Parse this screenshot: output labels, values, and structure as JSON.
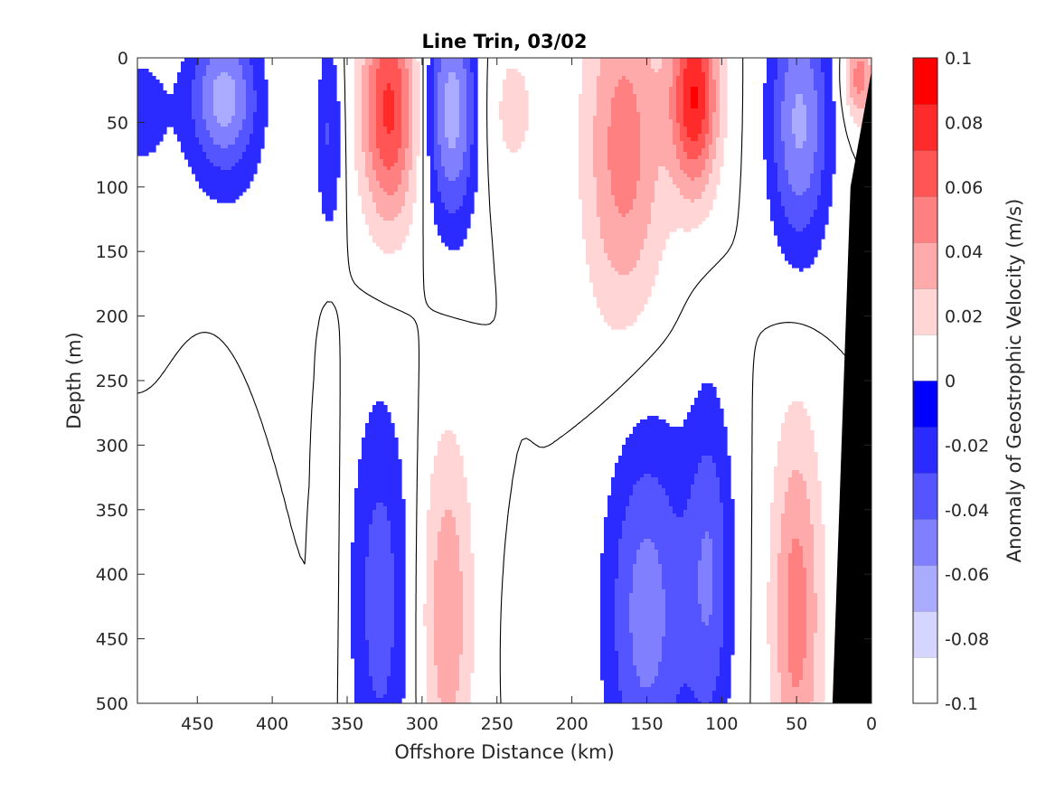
{
  "chart_data": {
    "type": "heatmap",
    "title": "Line Trin, 03/02",
    "xlabel": "Offshore Distance (km)",
    "ylabel": "Depth (m)",
    "colorbar_label": "Anomaly of Geostrophic Velocity (m/s)",
    "xlim": [
      490,
      0
    ],
    "ylim": [
      0,
      500
    ],
    "x_reversed": true,
    "y_reversed": true,
    "xticks": [
      450,
      400,
      350,
      300,
      250,
      200,
      150,
      100,
      50,
      0
    ],
    "yticks": [
      0,
      50,
      100,
      150,
      200,
      250,
      300,
      350,
      400,
      450,
      500
    ],
    "colorbar_limits": [
      -0.1,
      0.1
    ],
    "colorbar_levels": 14,
    "colorbar_ticks": [
      {
        "value": 0.1,
        "label": "0.1"
      },
      {
        "value": 0.08,
        "label": "0.08"
      },
      {
        "value": 0.06,
        "label": "0.06"
      },
      {
        "value": 0.04,
        "label": "0.04"
      },
      {
        "value": 0.02,
        "label": "0.02"
      },
      {
        "value": 0,
        "label": "0"
      },
      {
        "value": -0.02,
        "label": "-0.02"
      },
      {
        "value": -0.04,
        "label": "-0.04"
      },
      {
        "value": -0.06,
        "label": "-0.06"
      },
      {
        "value": -0.08,
        "label": "-0.08"
      },
      {
        "value": -0.1,
        "label": "-0.1"
      }
    ],
    "colormap": {
      "negative_max": "#0000ff",
      "zero": "#ffffff",
      "positive_max": "#ff0000",
      "land": "#000000"
    },
    "features": [
      {
        "x": 432,
        "z": 30,
        "sx": 22,
        "sz": 55,
        "amp": -0.06
      },
      {
        "x": 435,
        "z": 150,
        "sx": 40,
        "sz": 140,
        "amp": -0.012
      },
      {
        "x": 488,
        "z": 40,
        "sx": 22,
        "sz": 60,
        "amp": -0.018
      },
      {
        "x": 440,
        "z": 290,
        "sx": 28,
        "sz": 160,
        "amp": 0.012
      },
      {
        "x": 480,
        "z": 470,
        "sx": 30,
        "sz": 120,
        "amp": 0.012
      },
      {
        "x": 392,
        "z": 470,
        "sx": 10,
        "sz": 40,
        "amp": 0.008
      },
      {
        "x": 362,
        "z": 60,
        "sx": 9,
        "sz": 80,
        "amp": -0.03
      },
      {
        "x": 362,
        "z": 380,
        "sx": 7,
        "sz": 160,
        "amp": 0.012
      },
      {
        "x": 322,
        "z": 40,
        "sx": 19,
        "sz": 90,
        "amp": 0.075
      },
      {
        "x": 280,
        "z": 40,
        "sx": 17,
        "sz": 90,
        "amp": -0.065
      },
      {
        "x": 328,
        "z": 420,
        "sx": 20,
        "sz": 160,
        "amp": -0.036
      },
      {
        "x": 283,
        "z": 430,
        "sx": 17,
        "sz": 140,
        "amp": 0.04
      },
      {
        "x": 230,
        "z": 460,
        "sx": 10,
        "sz": 60,
        "amp": -0.012
      },
      {
        "x": 240,
        "z": 40,
        "sx": 22,
        "sz": 70,
        "amp": 0.018
      },
      {
        "x": 165,
        "z": 70,
        "sx": 27,
        "sz": 140,
        "amp": 0.05
      },
      {
        "x": 118,
        "z": 30,
        "sx": 16,
        "sz": 75,
        "amp": 0.085
      },
      {
        "x": 150,
        "z": 430,
        "sx": 28,
        "sz": 150,
        "amp": -0.05
      },
      {
        "x": 108,
        "z": 400,
        "sx": 16,
        "sz": 140,
        "amp": -0.04
      },
      {
        "x": 48,
        "z": 50,
        "sx": 20,
        "sz": 100,
        "amp": -0.06
      },
      {
        "x": 50,
        "z": 430,
        "sx": 17,
        "sz": 150,
        "amp": 0.05
      },
      {
        "x": 8,
        "z": 15,
        "sx": 10,
        "sz": 35,
        "amp": 0.05
      }
    ]
  }
}
